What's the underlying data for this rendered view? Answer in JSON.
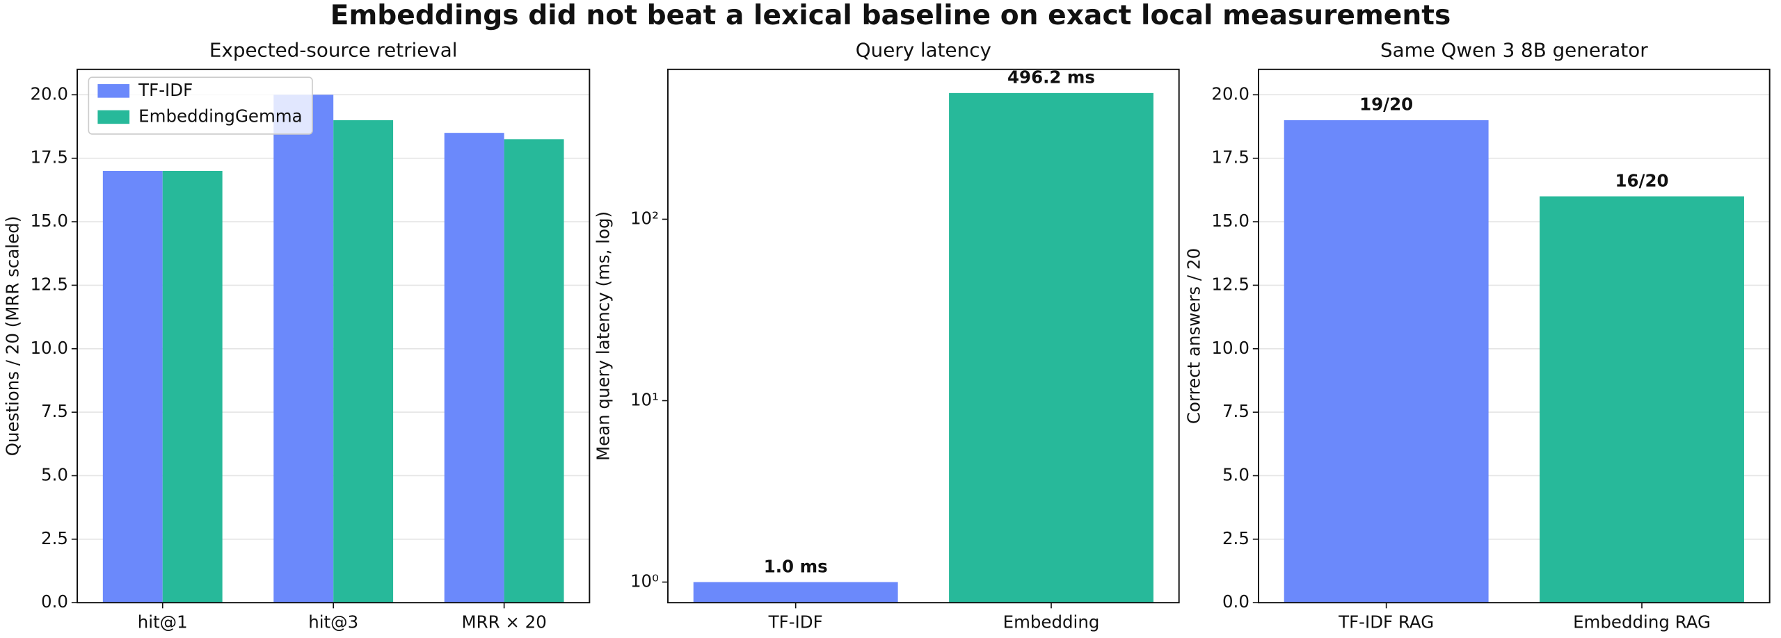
{
  "title": "Embeddings did not beat a lexical baseline on exact local measurements",
  "chart_data": [
    {
      "type": "bar",
      "title": "Expected-source retrieval",
      "y_label": "Questions / 20 (MRR scaled)",
      "categories": [
        "hit@1",
        "hit@3",
        "MRR × 20"
      ],
      "series": [
        {
          "name": "TF-IDF",
          "color": "#6b89fb",
          "values": [
            17,
            20,
            18.5
          ]
        },
        {
          "name": "EmbeddingGemma",
          "color": "#27b99a",
          "values": [
            17,
            19,
            18.25
          ]
        }
      ],
      "ylim": [
        0,
        21
      ],
      "yticks": [
        {
          "value": 0,
          "label": "0.0"
        },
        {
          "value": 2.5,
          "label": "2.5"
        },
        {
          "value": 5,
          "label": "5.0"
        },
        {
          "value": 7.5,
          "label": "7.5"
        },
        {
          "value": 10,
          "label": "10.0"
        },
        {
          "value": 12.5,
          "label": "12.5"
        },
        {
          "value": 15,
          "label": "15.0"
        },
        {
          "value": 17.5,
          "label": "17.5"
        },
        {
          "value": 20,
          "label": "20.0"
        }
      ],
      "grid": true,
      "legend": "upper-left"
    },
    {
      "type": "bar",
      "title": "Query latency",
      "y_label": "Mean query latency (ms, log)",
      "categories": [
        "TF-IDF",
        "Embedding"
      ],
      "values": [
        1.0,
        496.2
      ],
      "value_labels": [
        "1.0 ms",
        "496.2 ms"
      ],
      "colors": [
        "#6b89fb",
        "#27b99a"
      ],
      "yscale": "log",
      "ylim": [
        0.77,
        670
      ],
      "yticks": [
        {
          "value": 1,
          "label": "10⁰"
        },
        {
          "value": 10,
          "label": "10¹"
        },
        {
          "value": 100,
          "label": "10²"
        }
      ],
      "grid": false
    },
    {
      "type": "bar",
      "title": "Same Qwen 3 8B generator",
      "y_label": "Correct answers / 20",
      "categories": [
        "TF-IDF RAG",
        "Embedding RAG"
      ],
      "values": [
        19,
        16
      ],
      "value_labels": [
        "19/20",
        "16/20"
      ],
      "colors": [
        "#6b89fb",
        "#27b99a"
      ],
      "ylim": [
        0,
        21
      ],
      "yticks": [
        {
          "value": 0,
          "label": "0.0"
        },
        {
          "value": 2.5,
          "label": "2.5"
        },
        {
          "value": 5,
          "label": "5.0"
        },
        {
          "value": 7.5,
          "label": "7.5"
        },
        {
          "value": 10,
          "label": "10.0"
        },
        {
          "value": 12.5,
          "label": "12.5"
        },
        {
          "value": 15,
          "label": "15.0"
        },
        {
          "value": 17.5,
          "label": "17.5"
        },
        {
          "value": 20,
          "label": "20.0"
        }
      ],
      "grid": true
    }
  ]
}
